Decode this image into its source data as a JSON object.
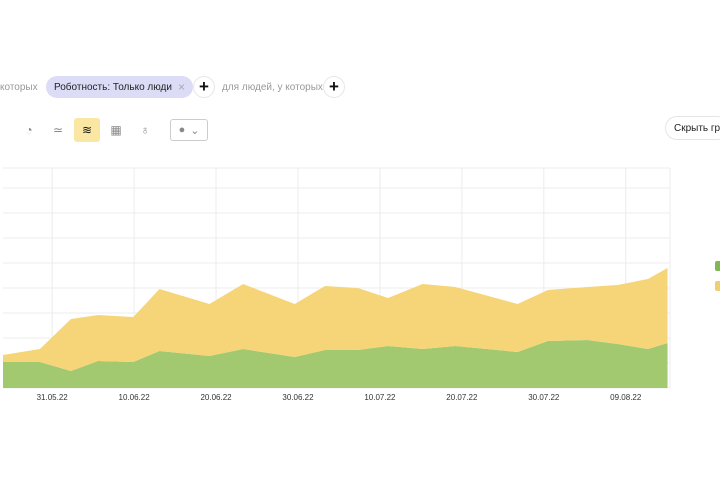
{
  "filters": {
    "left_text": "которых",
    "chip_label": "Роботность: Только люди",
    "chip_close": "×",
    "plus": "+",
    "people_text": "для людей, у которых"
  },
  "toolbar": {
    "icons": [
      "pie-icon",
      "line-icon",
      "stacked-area-icon",
      "table-icon",
      "map-pin-icon"
    ],
    "glyphs": [
      "◔",
      "≃",
      "≋",
      "▦",
      "♁"
    ],
    "active": "stacked-area-icon",
    "dropdown_glyph": "●",
    "dropdown_chevron": "⌄"
  },
  "hide_button": "Скрыть гр",
  "colors": {
    "green": "#a2c96f",
    "yellow": "#f5d578",
    "grid": "#ececec"
  },
  "chart_data": {
    "type": "area",
    "stacked": true,
    "x_unit": "days since 25.05.22",
    "x": [
      0,
      4.5,
      8.3,
      11.6,
      15.9,
      19.1,
      25.2,
      29.3,
      35.6,
      39.3,
      43.3,
      47,
      51.2,
      55.2,
      62.8,
      66.5,
      71.3,
      75,
      78.7,
      81.1
    ],
    "series": [
      {
        "name": "green",
        "color": "#a2c96f",
        "values": [
          1.04,
          1.04,
          0.68,
          1.08,
          1.04,
          1.48,
          1.28,
          1.56,
          1.24,
          1.52,
          1.52,
          1.68,
          1.56,
          1.68,
          1.44,
          1.88,
          1.92,
          1.76,
          1.56,
          1.8
        ]
      },
      {
        "name": "yellow",
        "color": "#f5d578",
        "values": [
          0.28,
          0.52,
          2.08,
          1.84,
          1.8,
          2.48,
          2.08,
          2.6,
          2.12,
          2.56,
          2.48,
          1.92,
          2.6,
          2.36,
          1.92,
          2.04,
          2.12,
          2.36,
          2.8,
          3.0
        ]
      }
    ],
    "ylim": [
      0,
      8.8
    ],
    "xlim": [
      0,
      81.4
    ],
    "grid": true,
    "x_ticks": [
      {
        "day": 6,
        "label": "31.05.22"
      },
      {
        "day": 16,
        "label": "10.06.22"
      },
      {
        "day": 26,
        "label": "20.06.22"
      },
      {
        "day": 36,
        "label": "30.06.22"
      },
      {
        "day": 46,
        "label": "10.07.22"
      },
      {
        "day": 56,
        "label": "20.07.22"
      },
      {
        "day": 66,
        "label": "30.07.22"
      },
      {
        "day": 76,
        "label": "09.08.22"
      }
    ]
  }
}
